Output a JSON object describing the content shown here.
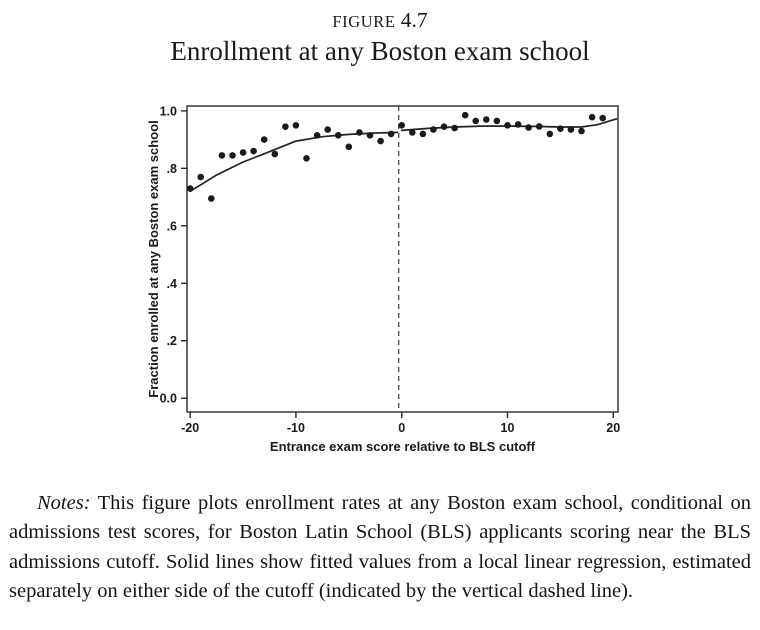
{
  "figure": {
    "figure_label": "FIGURE",
    "figure_number": "4.7",
    "title": "Enrollment at any Boston exam school"
  },
  "notes": {
    "label": "Notes:",
    "text": " This figure plots enrollment rates at any Boston exam school, conditional on admissions test scores, for Boston Latin School (BLS) applicants scoring near the BLS admissions cutoff. Solid lines show fitted values from a local linear regression, estimated separately on either side of the cutoff (indicated by the vertical dashed line)."
  },
  "chart_data": {
    "type": "scatter",
    "title": "Enrollment at any Boston exam school",
    "xlabel": "Entrance exam score relative to BLS cutoff",
    "ylabel": "Fraction enrolled at any Boston exam school",
    "xlim": [
      -20.3,
      20.45
    ],
    "ylim": [
      -0.048,
      1.017
    ],
    "x_ticks": [
      -20,
      -10,
      0,
      10,
      20
    ],
    "x_tick_labels": [
      "-20",
      "-10",
      "0",
      "10",
      "20"
    ],
    "y_ticks": [
      0.0,
      0.2,
      0.4,
      0.6,
      0.8,
      1.0
    ],
    "y_tick_labels": [
      "0.0",
      ".2",
      ".4",
      ".6",
      ".8",
      "1.0"
    ],
    "grid": false,
    "legend": "none",
    "cutoff_x": 0,
    "cutoff_line_style": "dashed",
    "point_color": "#1a1a1a",
    "line_color": "#222222",
    "points": [
      [
        -20,
        0.73
      ],
      [
        -19,
        0.77
      ],
      [
        -18,
        0.695
      ],
      [
        -17,
        0.845
      ],
      [
        -16,
        0.845
      ],
      [
        -15,
        0.855
      ],
      [
        -14,
        0.86
      ],
      [
        -13,
        0.9
      ],
      [
        -12,
        0.85
      ],
      [
        -11,
        0.945
      ],
      [
        -10,
        0.95
      ],
      [
        -9,
        0.835
      ],
      [
        -8,
        0.915
      ],
      [
        -7,
        0.935
      ],
      [
        -6,
        0.915
      ],
      [
        -5,
        0.875
      ],
      [
        -4,
        0.925
      ],
      [
        -3,
        0.915
      ],
      [
        -2,
        0.895
      ],
      [
        -1,
        0.92
      ],
      [
        0,
        0.95
      ],
      [
        1,
        0.925
      ],
      [
        2,
        0.92
      ],
      [
        3,
        0.935
      ],
      [
        4,
        0.945
      ],
      [
        5,
        0.94
      ],
      [
        6,
        0.985
      ],
      [
        7,
        0.965
      ],
      [
        8,
        0.97
      ],
      [
        9,
        0.965
      ],
      [
        10,
        0.95
      ],
      [
        11,
        0.953
      ],
      [
        12,
        0.942
      ],
      [
        13,
        0.946
      ],
      [
        14,
        0.92
      ],
      [
        15,
        0.938
      ],
      [
        16,
        0.935
      ],
      [
        17,
        0.93
      ],
      [
        18,
        0.978
      ],
      [
        19,
        0.975
      ]
    ],
    "fit_left": [
      [
        -20,
        0.72
      ],
      [
        -17.5,
        0.777
      ],
      [
        -15,
        0.822
      ],
      [
        -12.5,
        0.858
      ],
      [
        -10,
        0.895
      ],
      [
        -7.5,
        0.91
      ],
      [
        -5,
        0.918
      ],
      [
        -2.5,
        0.923
      ],
      [
        -0.4,
        0.925
      ]
    ],
    "fit_right": [
      [
        0,
        0.932
      ],
      [
        2.5,
        0.939
      ],
      [
        5,
        0.944
      ],
      [
        7.5,
        0.947
      ],
      [
        10,
        0.947
      ],
      [
        12.5,
        0.946
      ],
      [
        15,
        0.944
      ],
      [
        17,
        0.944
      ],
      [
        18.5,
        0.952
      ],
      [
        20.3,
        0.972
      ]
    ]
  }
}
